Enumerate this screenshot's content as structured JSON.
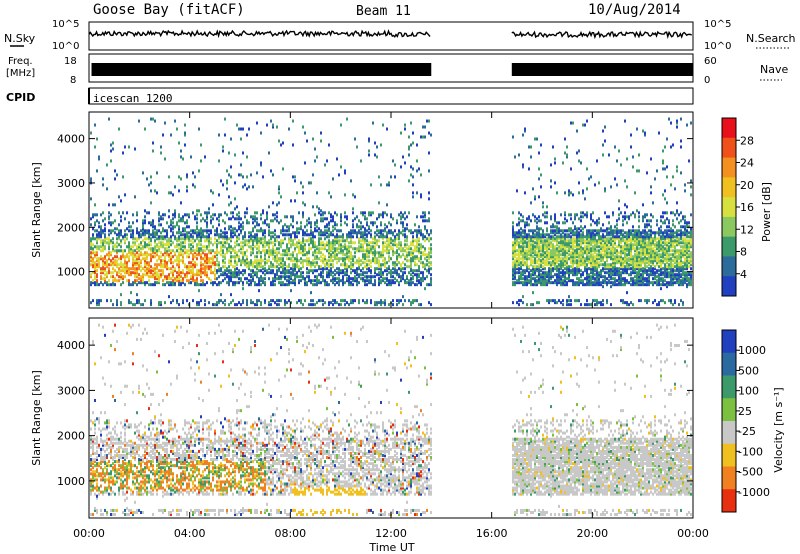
{
  "header": {
    "title": "Goose Bay (fitACF)",
    "beam": "Beam 11",
    "date": "10/Aug/2014"
  },
  "sky_panel": {
    "left_label": "N.Sky",
    "left_ticks": [
      "10^5",
      "10^0"
    ],
    "right_label": "N.Search",
    "right_ticks": [
      "10^5",
      "10^0"
    ]
  },
  "freq_panel": {
    "left_label_1": "Freq.",
    "left_label_2": "[MHz]",
    "left_ticks": [
      "18",
      "8"
    ],
    "right_label": "Nave",
    "right_ticks": [
      "60",
      "0"
    ]
  },
  "cpid_panel": {
    "label": "CPID",
    "value": "icescan 1200"
  },
  "power_panel": {
    "ylabel": "Slant Range [km]",
    "colorbar_label": "Power [dB]",
    "colorbar_ticks": [
      "28",
      "24",
      "20",
      "16",
      "12",
      "8",
      "4"
    ],
    "colorbar_colors": [
      "#e8101a",
      "#f0501a",
      "#f39020",
      "#f0c020",
      "#d8e040",
      "#8cc860",
      "#3c9a6a",
      "#2c6c9a",
      "#2040c0"
    ]
  },
  "velocity_panel": {
    "ylabel": "Slant Range [km]",
    "colorbar_label": "Velocity [m s⁻¹]",
    "colorbar_ticks": [
      "1000",
      "500",
      "100",
      "25",
      "-25",
      "-100",
      "-500",
      "-1000"
    ],
    "colorbar_colors": [
      "#2040c0",
      "#2a6aa0",
      "#3c9a6a",
      "#7cc040",
      "#c8c8c8",
      "#f0c020",
      "#f08020",
      "#e83010"
    ]
  },
  "range_ticks": [
    "4000",
    "3000",
    "2000",
    "1000"
  ],
  "time_axis": {
    "label": "Time UT",
    "ticks": [
      "00:00",
      "04:00",
      "08:00",
      "12:00",
      "16:00",
      "20:00",
      "00:00"
    ]
  },
  "chart_data": {
    "type": "heatmap",
    "x_range_hours": [
      0,
      24
    ],
    "y_range_km": [
      180,
      4600
    ],
    "data_gap_hours": [
      13.6,
      16.8
    ],
    "panels": [
      "Power [dB]",
      "Velocity [m s⁻¹]"
    ]
  }
}
